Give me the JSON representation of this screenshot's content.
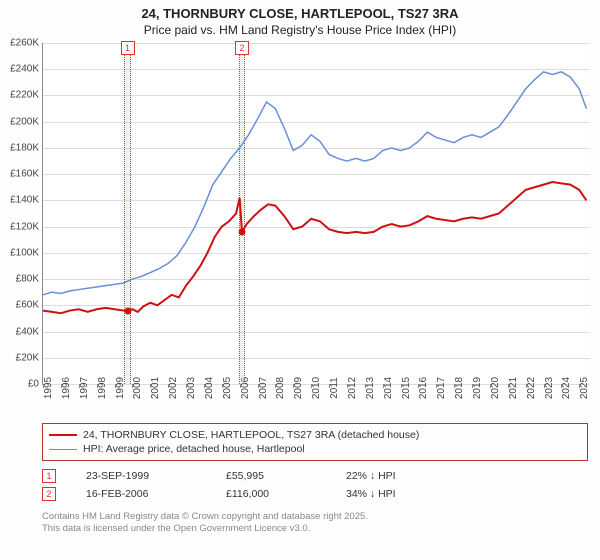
{
  "title": "24, THORNBURY CLOSE, HARTLEPOOL, TS27 3RA",
  "subtitle": "Price paid vs. HM Land Registry's House Price Index (HPI)",
  "chart": {
    "type": "line",
    "background_color": "#ffffff",
    "grid_color": "#dddddd",
    "axis_color": "#888888",
    "x": {
      "min": 1995,
      "max": 2025.6,
      "tick_step": 1,
      "labels": [
        "1995",
        "1996",
        "1997",
        "1998",
        "1999",
        "2000",
        "2001",
        "2002",
        "2003",
        "2004",
        "2005",
        "2006",
        "2007",
        "2008",
        "2009",
        "2010",
        "2011",
        "2012",
        "2013",
        "2014",
        "2015",
        "2016",
        "2017",
        "2018",
        "2019",
        "2020",
        "2021",
        "2022",
        "2023",
        "2024",
        "2025"
      ]
    },
    "y": {
      "min": 0,
      "max": 260000,
      "tick_step": 20000,
      "labels": [
        "£0",
        "£20K",
        "£40K",
        "£60K",
        "£80K",
        "£100K",
        "£120K",
        "£140K",
        "£160K",
        "£180K",
        "£200K",
        "£220K",
        "£240K",
        "£260K"
      ],
      "label_fontsize": 10
    },
    "series": [
      {
        "key": "price_paid",
        "label": "24, THORNBURY CLOSE, HARTLEPOOL, TS27 3RA (detached house)",
        "color": "#cc1111",
        "line_width": 2,
        "data": [
          [
            1995.0,
            56000
          ],
          [
            1995.5,
            55000
          ],
          [
            1996.0,
            54000
          ],
          [
            1996.5,
            56000
          ],
          [
            1997.0,
            57000
          ],
          [
            1997.5,
            55000
          ],
          [
            1998.0,
            57000
          ],
          [
            1998.5,
            58000
          ],
          [
            1999.0,
            57000
          ],
          [
            1999.5,
            56000
          ],
          [
            1999.73,
            55995
          ],
          [
            2000.0,
            57000
          ],
          [
            2000.3,
            55000
          ],
          [
            2000.6,
            59000
          ],
          [
            2001.0,
            62000
          ],
          [
            2001.4,
            60000
          ],
          [
            2001.8,
            64000
          ],
          [
            2002.2,
            68000
          ],
          [
            2002.6,
            66000
          ],
          [
            2003.0,
            75000
          ],
          [
            2003.4,
            82000
          ],
          [
            2003.8,
            90000
          ],
          [
            2004.2,
            100000
          ],
          [
            2004.6,
            112000
          ],
          [
            2005.0,
            120000
          ],
          [
            2005.4,
            124000
          ],
          [
            2005.8,
            130000
          ],
          [
            2006.0,
            142000
          ],
          [
            2006.13,
            116000
          ],
          [
            2006.4,
            122000
          ],
          [
            2006.8,
            128000
          ],
          [
            2007.2,
            133000
          ],
          [
            2007.6,
            137000
          ],
          [
            2008.0,
            136000
          ],
          [
            2008.5,
            128000
          ],
          [
            2009.0,
            118000
          ],
          [
            2009.5,
            120000
          ],
          [
            2010.0,
            126000
          ],
          [
            2010.5,
            124000
          ],
          [
            2011.0,
            118000
          ],
          [
            2011.5,
            116000
          ],
          [
            2012.0,
            115000
          ],
          [
            2012.5,
            116000
          ],
          [
            2013.0,
            115000
          ],
          [
            2013.5,
            116000
          ],
          [
            2014.0,
            120000
          ],
          [
            2014.5,
            122000
          ],
          [
            2015.0,
            120000
          ],
          [
            2015.5,
            121000
          ],
          [
            2016.0,
            124000
          ],
          [
            2016.5,
            128000
          ],
          [
            2017.0,
            126000
          ],
          [
            2017.5,
            125000
          ],
          [
            2018.0,
            124000
          ],
          [
            2018.5,
            126000
          ],
          [
            2019.0,
            127000
          ],
          [
            2019.5,
            126000
          ],
          [
            2020.0,
            128000
          ],
          [
            2020.5,
            130000
          ],
          [
            2021.0,
            136000
          ],
          [
            2021.5,
            142000
          ],
          [
            2022.0,
            148000
          ],
          [
            2022.5,
            150000
          ],
          [
            2023.0,
            152000
          ],
          [
            2023.5,
            154000
          ],
          [
            2024.0,
            153000
          ],
          [
            2024.5,
            152000
          ],
          [
            2025.0,
            148000
          ],
          [
            2025.4,
            140000
          ]
        ]
      },
      {
        "key": "hpi",
        "label": "HPI: Average price, detached house, Hartlepool",
        "color": "#6a8fd8",
        "line_width": 1.5,
        "data": [
          [
            1995.0,
            68000
          ],
          [
            1995.5,
            70000
          ],
          [
            1996.0,
            69000
          ],
          [
            1996.5,
            71000
          ],
          [
            1997.0,
            72000
          ],
          [
            1997.5,
            73000
          ],
          [
            1998.0,
            74000
          ],
          [
            1998.5,
            75000
          ],
          [
            1999.0,
            76000
          ],
          [
            1999.5,
            77000
          ],
          [
            2000.0,
            80000
          ],
          [
            2000.5,
            82000
          ],
          [
            2001.0,
            85000
          ],
          [
            2001.5,
            88000
          ],
          [
            2002.0,
            92000
          ],
          [
            2002.5,
            98000
          ],
          [
            2003.0,
            108000
          ],
          [
            2003.5,
            120000
          ],
          [
            2004.0,
            135000
          ],
          [
            2004.5,
            152000
          ],
          [
            2005.0,
            162000
          ],
          [
            2005.5,
            172000
          ],
          [
            2006.0,
            180000
          ],
          [
            2006.5,
            190000
          ],
          [
            2007.0,
            202000
          ],
          [
            2007.5,
            215000
          ],
          [
            2008.0,
            210000
          ],
          [
            2008.5,
            195000
          ],
          [
            2009.0,
            178000
          ],
          [
            2009.5,
            182000
          ],
          [
            2010.0,
            190000
          ],
          [
            2010.5,
            185000
          ],
          [
            2011.0,
            175000
          ],
          [
            2011.5,
            172000
          ],
          [
            2012.0,
            170000
          ],
          [
            2012.5,
            172000
          ],
          [
            2013.0,
            170000
          ],
          [
            2013.5,
            172000
          ],
          [
            2014.0,
            178000
          ],
          [
            2014.5,
            180000
          ],
          [
            2015.0,
            178000
          ],
          [
            2015.5,
            180000
          ],
          [
            2016.0,
            185000
          ],
          [
            2016.5,
            192000
          ],
          [
            2017.0,
            188000
          ],
          [
            2017.5,
            186000
          ],
          [
            2018.0,
            184000
          ],
          [
            2018.5,
            188000
          ],
          [
            2019.0,
            190000
          ],
          [
            2019.5,
            188000
          ],
          [
            2020.0,
            192000
          ],
          [
            2020.5,
            196000
          ],
          [
            2021.0,
            205000
          ],
          [
            2021.5,
            215000
          ],
          [
            2022.0,
            225000
          ],
          [
            2022.5,
            232000
          ],
          [
            2023.0,
            238000
          ],
          [
            2023.5,
            236000
          ],
          [
            2024.0,
            238000
          ],
          [
            2024.5,
            234000
          ],
          [
            2025.0,
            225000
          ],
          [
            2025.4,
            210000
          ]
        ]
      }
    ],
    "sales": [
      {
        "id": "1",
        "x": 1999.73,
        "price": 55995,
        "date": "23-SEP-1999",
        "delta": "22% ↓ HPI",
        "marker_color": "#cc1111"
      },
      {
        "id": "2",
        "x": 2006.13,
        "price": 116000,
        "date": "16-FEB-2006",
        "delta": "34% ↓ HPI",
        "marker_color": "#cc1111"
      }
    ],
    "sale_band_width_years": 0.35
  },
  "legend_border_color": "#b33333",
  "attribution": {
    "line1": "Contains HM Land Registry data © Crown copyright and database right 2025.",
    "line2": "This data is licensed under the Open Government Licence v3.0."
  }
}
